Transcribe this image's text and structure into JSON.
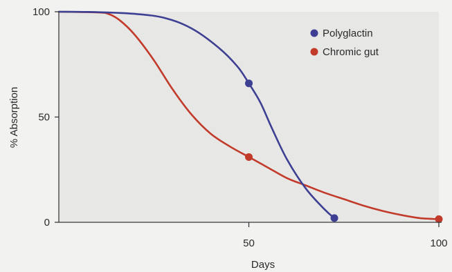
{
  "chart_data": {
    "type": "line",
    "title": "",
    "xlabel": "Days",
    "ylabel": "% Absorption",
    "xlim": [
      0,
      100
    ],
    "ylim": [
      0,
      100
    ],
    "x_ticks": [
      50,
      100
    ],
    "y_ticks": [
      0,
      50,
      100
    ],
    "x_tick_labels": [
      "50",
      "100"
    ],
    "y_tick_labels": [
      "0",
      "50",
      "100"
    ],
    "grid": false,
    "legend_position": "top-right",
    "series": [
      {
        "name": "Polyglactin",
        "color": "#3d3f92",
        "x": [
          0,
          10,
          20,
          28,
          35,
          42,
          47,
          50,
          53,
          56,
          60,
          65,
          70,
          72.5
        ],
        "y": [
          100,
          99.8,
          99,
          97,
          92,
          83,
          74,
          66,
          57,
          45,
          30,
          16,
          6,
          2
        ],
        "markers": [
          {
            "x": 50,
            "y": 66
          },
          {
            "x": 72.5,
            "y": 2
          }
        ]
      },
      {
        "name": "Chromic gut",
        "color": "#c23a2a",
        "x": [
          0,
          10,
          13,
          16,
          20,
          25,
          30,
          35,
          40,
          45,
          50,
          55,
          60,
          65,
          70,
          75,
          80,
          85,
          90,
          95,
          100
        ],
        "y": [
          100,
          99.7,
          99,
          96,
          89,
          77,
          63,
          51,
          42,
          36,
          31,
          26,
          21,
          17.5,
          14,
          11,
          8,
          5.5,
          3.5,
          2,
          1.5
        ],
        "markers": [
          {
            "x": 50,
            "y": 31
          },
          {
            "x": 100,
            "y": 1.5
          }
        ]
      }
    ]
  }
}
